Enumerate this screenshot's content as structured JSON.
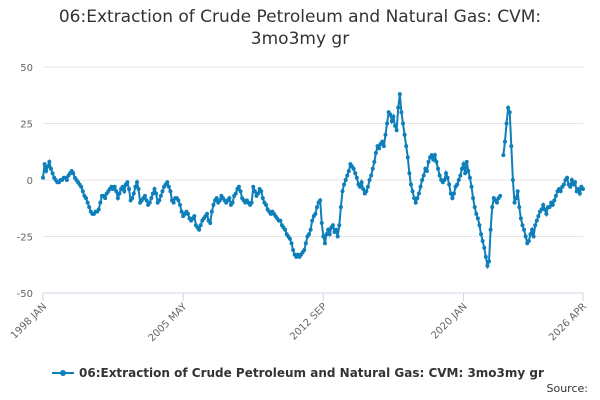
{
  "chart_data": {
    "type": "line",
    "title": "06:Extraction of Crude Petroleum and Natural Gas: CVM: 3mo3my gr",
    "source": "Source:",
    "categories": [
      "1998 JAN",
      null,
      null,
      null,
      null,
      null,
      null,
      null,
      null,
      null,
      null,
      null,
      null,
      null,
      null,
      null,
      null,
      null,
      null,
      null,
      null,
      null,
      null,
      null,
      null,
      null,
      null,
      null,
      null,
      null,
      null,
      null,
      null,
      null,
      null,
      null,
      null,
      null,
      null,
      null,
      null,
      null,
      null,
      null,
      null,
      null,
      null,
      null,
      null,
      null,
      null,
      null,
      null,
      null,
      null,
      null,
      null,
      null,
      null,
      null,
      null,
      null,
      null,
      null,
      null,
      null,
      null,
      null,
      null,
      null,
      null,
      null,
      null,
      null,
      null,
      null,
      null,
      null,
      null,
      null,
      null,
      null,
      null,
      null,
      null,
      null,
      null,
      null,
      "2005 MAY",
      null,
      null,
      null,
      null,
      null,
      null,
      null,
      null,
      null,
      null,
      null,
      null,
      null,
      null,
      null,
      null,
      null,
      null,
      null,
      null,
      null,
      null,
      null,
      null,
      null,
      null,
      null,
      null,
      null,
      null,
      null,
      null,
      null,
      null,
      null,
      null,
      null,
      null,
      null,
      null,
      null,
      null,
      null,
      null,
      null,
      null,
      null,
      null,
      null,
      null,
      null,
      null,
      null,
      null,
      null,
      null,
      null,
      null,
      null,
      null,
      null,
      null,
      null,
      null,
      null,
      null,
      null,
      null,
      null,
      null,
      null,
      null,
      null,
      null,
      null,
      null,
      null,
      null,
      null,
      null,
      null,
      null,
      null,
      null,
      null,
      null,
      null,
      "2012 SEP",
      null,
      null,
      null,
      null,
      null,
      null,
      null,
      null,
      null,
      null,
      null,
      null,
      null,
      null,
      null,
      null,
      null,
      null,
      null,
      null,
      null,
      null,
      null,
      null,
      null,
      null,
      null,
      null,
      null,
      null,
      null,
      null,
      null,
      null,
      null,
      null,
      null,
      null,
      null,
      null,
      null,
      null,
      null,
      null,
      null,
      null,
      null,
      null,
      null,
      null,
      null,
      null,
      null,
      null,
      null,
      null,
      null,
      null,
      null,
      null,
      null,
      null,
      null,
      null,
      null,
      null,
      null,
      null,
      null,
      null,
      null,
      null,
      null,
      null,
      null,
      null,
      null,
      null,
      null,
      null,
      null,
      null,
      null,
      null,
      null,
      null,
      null,
      "2020 JAN",
      null,
      null,
      null,
      null,
      null,
      null,
      null,
      null,
      null,
      null,
      null,
      null,
      null,
      null,
      null,
      null,
      null,
      null,
      null,
      null,
      null,
      null,
      null,
      null,
      null,
      null,
      null,
      null,
      null,
      null,
      null,
      null,
      null,
      null,
      null,
      null,
      null,
      null,
      null,
      null,
      null,
      null,
      null,
      null,
      null,
      null,
      null,
      null,
      null,
      null,
      null,
      null,
      null,
      null,
      null,
      null,
      null,
      null,
      null,
      null,
      null,
      null,
      null,
      null,
      null,
      null,
      null,
      null,
      null,
      null,
      null,
      null,
      null,
      null,
      "2026 APR"
    ],
    "series": [
      {
        "name": "06:Extraction of Crude Petroleum and Natural Gas: CVM: 3mo3my gr",
        "color": "#0e7fba",
        "values": [
          1,
          7,
          4,
          6,
          8,
          5,
          3,
          1,
          0,
          -1,
          -1,
          0,
          0,
          1,
          1,
          0,
          2,
          3,
          4,
          3,
          1,
          0,
          -1,
          -2,
          -3,
          -5,
          -7,
          -8,
          -10,
          -12,
          -14,
          -15,
          -15,
          -14,
          -14,
          -13,
          -10,
          -7,
          -7,
          -8,
          -6,
          -5,
          -4,
          -3,
          -4,
          -3,
          -5,
          -8,
          -6,
          -4,
          -3,
          -5,
          -2,
          -1,
          -4,
          -9,
          -8,
          -6,
          -3,
          -1,
          -4,
          -10,
          -9,
          -8,
          -7,
          -9,
          -11,
          -10,
          -8,
          -6,
          -4,
          -6,
          -10,
          -9,
          -7,
          -5,
          -3,
          -2,
          -1,
          -3,
          -5,
          -9,
          -10,
          -8,
          -8,
          -9,
          -11,
          -14,
          -16,
          -15,
          -14,
          -15,
          -17,
          -18,
          -17,
          -16,
          -20,
          -21,
          -22,
          -20,
          -18,
          -17,
          -16,
          -15,
          -18,
          -19,
          -14,
          -11,
          -9,
          -8,
          -10,
          -9,
          -7,
          -8,
          -9,
          -10,
          -9,
          -8,
          -11,
          -10,
          -7,
          -6,
          -4,
          -3,
          -5,
          -8,
          -9,
          -10,
          -9,
          -10,
          -11,
          -10,
          -3,
          -5,
          -7,
          -6,
          -4,
          -5,
          -8,
          -10,
          -11,
          -13,
          -14,
          -15,
          -14,
          -15,
          -16,
          -17,
          -18,
          -18,
          -20,
          -21,
          -22,
          -24,
          -25,
          -26,
          -28,
          -31,
          -33,
          -34,
          -33,
          -34,
          -33,
          -32,
          -31,
          -28,
          -25,
          -24,
          -22,
          -18,
          -16,
          -15,
          -12,
          -10,
          -9,
          -19,
          -25,
          -28,
          -24,
          -22,
          -24,
          -21,
          -20,
          -23,
          -22,
          -25,
          -20,
          -12,
          -5,
          -2,
          0,
          2,
          4,
          7,
          6,
          5,
          3,
          1,
          -2,
          -3,
          -1,
          -4,
          -6,
          -5,
          -3,
          0,
          2,
          5,
          8,
          12,
          15,
          14,
          16,
          17,
          15,
          20,
          25,
          30,
          29,
          26,
          28,
          24,
          22,
          32,
          38,
          30,
          25,
          20,
          15,
          10,
          3,
          -2,
          -5,
          -8,
          -10,
          -8,
          -6,
          -3,
          0,
          2,
          5,
          4,
          8,
          10,
          11,
          9,
          11,
          8,
          5,
          2,
          0,
          -1,
          0,
          3,
          1,
          -2,
          -6,
          -8,
          -6,
          -3,
          -2,
          0,
          2,
          5,
          7,
          3,
          8,
          4,
          1,
          -3,
          -8,
          -12,
          -15,
          -17,
          -20,
          -24,
          -27,
          -30,
          -34,
          -38,
          -36,
          -22,
          -12,
          -8,
          -9,
          -10,
          -8,
          -7,
          null,
          11,
          17,
          25,
          32,
          30,
          15,
          0,
          -10,
          -8,
          -5,
          -12,
          -17,
          -20,
          -22,
          -25,
          -28,
          -27,
          -24,
          -22,
          -25,
          -20,
          -18,
          -16,
          -14,
          -13,
          -11,
          -13,
          -15,
          -12,
          -12,
          -10,
          -11,
          -9,
          -7,
          -5,
          -4,
          -5,
          -3,
          -2,
          0,
          1,
          -2,
          -3,
          0,
          -2,
          -1,
          -5,
          -4,
          -6,
          -3,
          -4
        ]
      }
    ],
    "ylim": [
      -50,
      50
    ],
    "yticks": [
      -50,
      -25,
      0,
      25,
      50
    ],
    "grid": true,
    "legend": "bottom"
  }
}
